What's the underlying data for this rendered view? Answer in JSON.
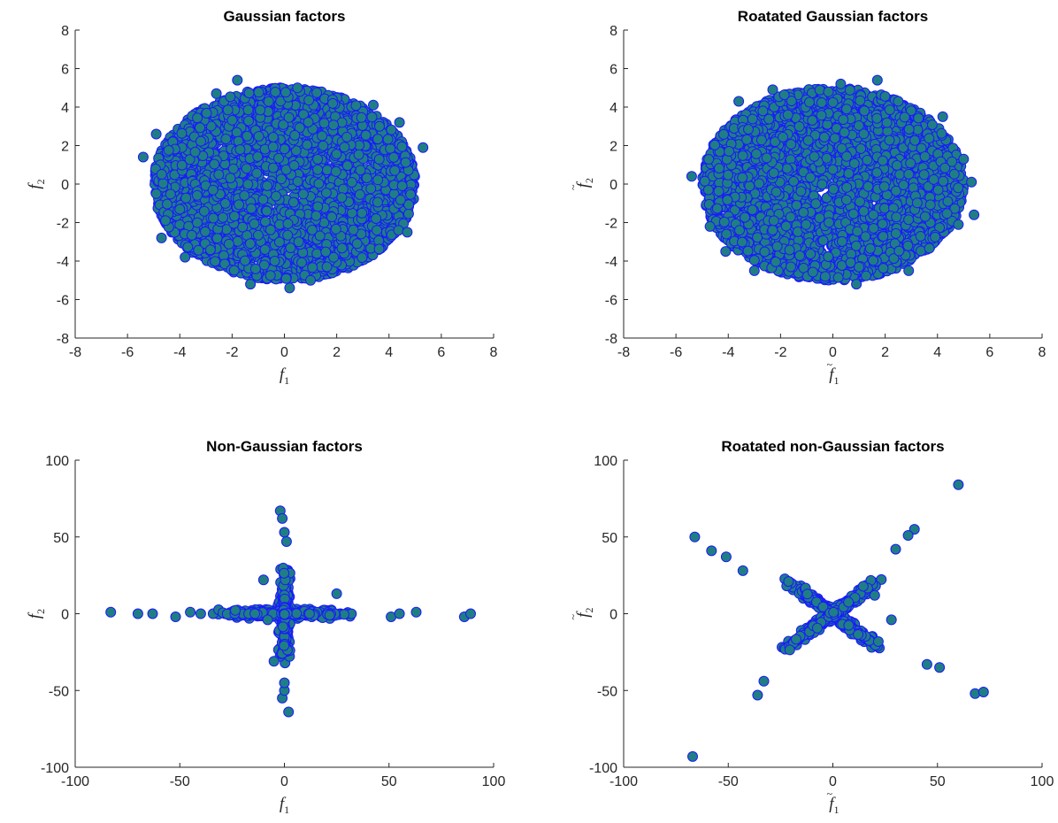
{
  "colors": {
    "marker_face": "#1f7e83",
    "marker_edge": "#1a1aff",
    "axis": "#262626"
  },
  "chart_data": [
    {
      "type": "scatter",
      "title": "Gaussian factors",
      "xlabel_main": "f",
      "xlabel_sub": "1",
      "xlabel_tilde": false,
      "ylabel_main": "f",
      "ylabel_sub": "2",
      "ylabel_tilde": false,
      "xlim": [
        -8,
        8
      ],
      "ylim": [
        -8,
        8
      ],
      "xticks": [
        "-8",
        "-6",
        "-4",
        "-2",
        "0",
        "2",
        "4",
        "6",
        "8"
      ],
      "yticks": [
        "-8",
        "-6",
        "-4",
        "-2",
        "0",
        "2",
        "4",
        "6",
        "8"
      ],
      "distribution": {
        "kind": "disc",
        "radius": 5.0,
        "count": 4000
      },
      "points": [
        [
          -5.4,
          1.4
        ],
        [
          -4.9,
          2.6
        ],
        [
          -4.7,
          -2.8
        ],
        [
          -1.8,
          5.4
        ],
        [
          -1.3,
          -5.2
        ],
        [
          0.2,
          -5.4
        ],
        [
          5.3,
          1.9
        ],
        [
          4.7,
          -2.5
        ],
        [
          4.4,
          3.2
        ],
        [
          3.4,
          4.1
        ],
        [
          1.0,
          -5.0
        ],
        [
          -2.6,
          4.7
        ],
        [
          -3.8,
          -3.8
        ],
        [
          -4.9,
          -0.5
        ],
        [
          0.5,
          5.0
        ]
      ],
      "grid": false
    },
    {
      "type": "scatter",
      "title": "Roatated Gaussian factors",
      "xlabel_main": "f",
      "xlabel_sub": "1",
      "xlabel_tilde": true,
      "ylabel_main": "f",
      "ylabel_sub": "2",
      "ylabel_tilde": true,
      "xlim": [
        -8,
        8
      ],
      "ylim": [
        -8,
        8
      ],
      "xticks": [
        "-8",
        "-6",
        "-4",
        "-2",
        "0",
        "2",
        "4",
        "6",
        "8"
      ],
      "yticks": [
        "-8",
        "-6",
        "-4",
        "-2",
        "0",
        "2",
        "4",
        "6",
        "8"
      ],
      "distribution": {
        "kind": "disc",
        "radius": 5.0,
        "count": 4000
      },
      "points": [
        [
          -5.4,
          0.4
        ],
        [
          -4.1,
          -3.5
        ],
        [
          -4.7,
          -2.2
        ],
        [
          1.7,
          5.4
        ],
        [
          0.3,
          5.2
        ],
        [
          0.9,
          -5.2
        ],
        [
          5.3,
          0.1
        ],
        [
          5.4,
          -1.6
        ],
        [
          5.0,
          1.3
        ],
        [
          4.8,
          -2.1
        ],
        [
          -2.3,
          4.9
        ],
        [
          2.9,
          -4.5
        ],
        [
          -3.0,
          -4.5
        ],
        [
          -3.6,
          4.3
        ],
        [
          4.2,
          3.5
        ],
        [
          2.5,
          4.3
        ]
      ],
      "grid": false
    },
    {
      "type": "scatter",
      "title": "Non-Gaussian factors",
      "xlabel_main": "f",
      "xlabel_sub": "1",
      "xlabel_tilde": false,
      "ylabel_main": "f",
      "ylabel_sub": "2",
      "ylabel_tilde": false,
      "xlim": [
        -100,
        100
      ],
      "ylim": [
        -100,
        100
      ],
      "xticks": [
        "-100",
        "-50",
        "0",
        "50",
        "100"
      ],
      "yticks": [
        "-100",
        "-50",
        "0",
        "50",
        "100"
      ],
      "distribution": {
        "kind": "cross",
        "angle_deg": 0,
        "count": 3000
      },
      "points": [
        [
          -83,
          1
        ],
        [
          -70,
          0
        ],
        [
          -63,
          0
        ],
        [
          -52,
          -2
        ],
        [
          -45,
          1
        ],
        [
          -40,
          0
        ],
        [
          51,
          -2
        ],
        [
          55,
          0
        ],
        [
          63,
          1
        ],
        [
          86,
          -2
        ],
        [
          89,
          0
        ],
        [
          -2,
          67
        ],
        [
          -1,
          62
        ],
        [
          0,
          53
        ],
        [
          1,
          47
        ],
        [
          -1,
          -55
        ],
        [
          0,
          -50
        ],
        [
          2,
          -64
        ],
        [
          0,
          -45
        ],
        [
          25,
          13
        ],
        [
          -10,
          22
        ],
        [
          -5,
          -31
        ],
        [
          -8,
          -4
        ]
      ],
      "grid": false
    },
    {
      "type": "scatter",
      "title": "Roatated non-Gaussian factors",
      "xlabel_main": "f",
      "xlabel_sub": "1",
      "xlabel_tilde": true,
      "ylabel_main": "f",
      "ylabel_sub": "2",
      "ylabel_tilde": true,
      "xlim": [
        -100,
        100
      ],
      "ylim": [
        -100,
        100
      ],
      "xticks": [
        "-100",
        "-50",
        "0",
        "50",
        "100"
      ],
      "yticks": [
        "-100",
        "-50",
        "0",
        "50",
        "100"
      ],
      "distribution": {
        "kind": "cross",
        "angle_deg": 45,
        "count": 3000
      },
      "points": [
        [
          -67,
          -93
        ],
        [
          -66,
          50
        ],
        [
          -58,
          41
        ],
        [
          -51,
          37
        ],
        [
          -43,
          28
        ],
        [
          -36,
          -53
        ],
        [
          -33,
          -44
        ],
        [
          60,
          84
        ],
        [
          68,
          -52
        ],
        [
          72,
          -51
        ],
        [
          51,
          -35
        ],
        [
          45,
          -33
        ],
        [
          39,
          55
        ],
        [
          36,
          51
        ],
        [
          30,
          42
        ],
        [
          28,
          -4
        ],
        [
          20,
          12
        ]
      ],
      "grid": false
    }
  ]
}
